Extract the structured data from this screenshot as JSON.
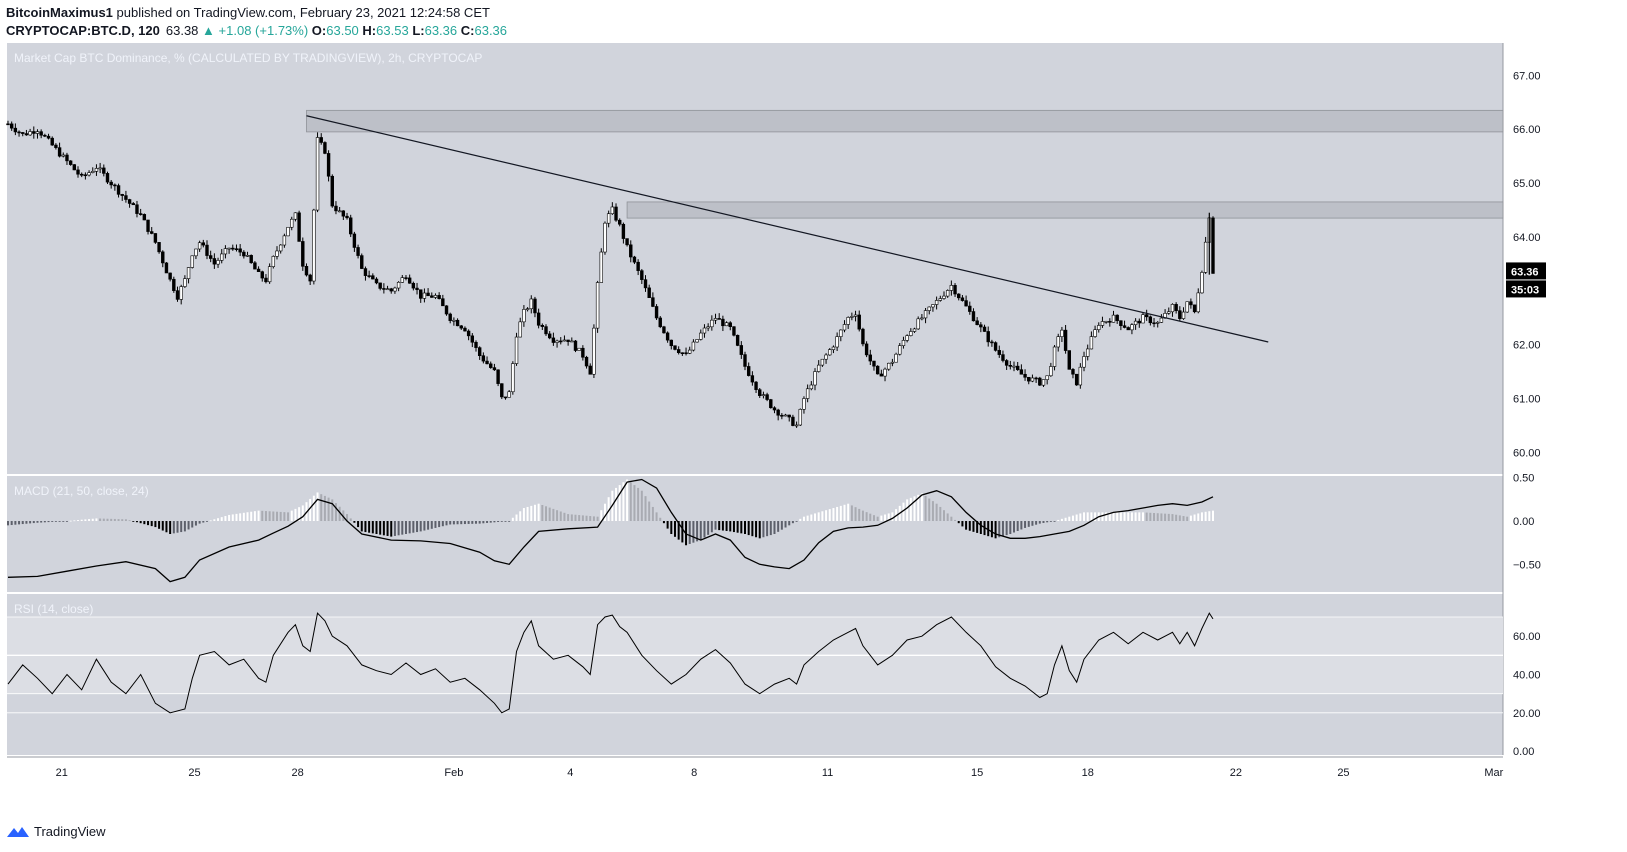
{
  "header": {
    "author": "BitcoinMaximus1",
    "published": "published on TradingView.com, February 23, 2021 12:24:58 CET",
    "symbol": "CRYPTOCAP:BTC.D, 120",
    "last": "63.38",
    "change": "+1.08 (+1.73%)",
    "o_label": "O:",
    "o_value": "63.50",
    "h_label": "H:",
    "h_value": "63.53",
    "l_label": "L:",
    "l_value": "63.36",
    "c_label": "C:",
    "c_value": "63.36"
  },
  "footer": {
    "brand": "TradingView"
  },
  "colors": {
    "pane_bg": "#d1d4dc",
    "candle": "#000000",
    "accent": "#26a69a",
    "zone": "#bdc0c8",
    "label_bg": "#000000"
  },
  "chart_data": [
    {
      "type": "candlestick",
      "title": "Market Cap BTC Dominance, % (CALCULATED BY TRADINGVIEW), 2h, CRYPTOCAP",
      "ylim": [
        59.6,
        67.6
      ],
      "y_ticks": [
        "67.00",
        "66.00",
        "65.00",
        "64.00",
        "62.00",
        "61.00",
        "60.00"
      ],
      "x_ticks": [
        "21",
        "25",
        "28",
        "Feb",
        "4",
        "8",
        "11",
        "15",
        "18",
        "22",
        "25",
        "Mar"
      ],
      "last_price_label": "63.36",
      "countdown_label": "35:03",
      "close_path": [
        [
          0,
          66.1
        ],
        [
          2,
          65.9
        ],
        [
          4,
          66.0
        ],
        [
          6,
          65.7
        ],
        [
          8,
          65.4
        ],
        [
          10,
          65.1
        ],
        [
          12,
          65.3
        ],
        [
          14,
          65.0
        ],
        [
          16,
          64.7
        ],
        [
          18,
          64.4
        ],
        [
          20,
          63.9
        ],
        [
          22,
          63.2
        ],
        [
          23,
          62.9
        ],
        [
          24,
          63.2
        ],
        [
          25,
          63.7
        ],
        [
          26,
          63.9
        ],
        [
          28,
          63.5
        ],
        [
          30,
          63.8
        ],
        [
          32,
          63.7
        ],
        [
          34,
          63.3
        ],
        [
          35,
          63.2
        ],
        [
          36,
          63.6
        ],
        [
          38,
          64.2
        ],
        [
          39,
          64.4
        ],
        [
          40,
          63.5
        ],
        [
          41,
          63.2
        ],
        [
          42,
          65.8
        ],
        [
          43,
          65.6
        ],
        [
          44,
          64.6
        ],
        [
          46,
          64.3
        ],
        [
          48,
          63.4
        ],
        [
          50,
          63.1
        ],
        [
          52,
          63.0
        ],
        [
          54,
          63.3
        ],
        [
          56,
          62.9
        ],
        [
          58,
          62.9
        ],
        [
          60,
          62.5
        ],
        [
          62,
          62.3
        ],
        [
          64,
          61.8
        ],
        [
          66,
          61.5
        ],
        [
          67,
          61.0
        ],
        [
          68,
          61.1
        ],
        [
          69,
          62.2
        ],
        [
          70,
          62.6
        ],
        [
          71,
          62.8
        ],
        [
          72,
          62.4
        ],
        [
          74,
          62.1
        ],
        [
          76,
          62.1
        ],
        [
          78,
          61.8
        ],
        [
          79,
          61.5
        ],
        [
          80,
          63.1
        ],
        [
          81,
          64.3
        ],
        [
          82,
          64.5
        ],
        [
          83,
          64.2
        ],
        [
          84,
          63.8
        ],
        [
          86,
          63.2
        ],
        [
          88,
          62.5
        ],
        [
          90,
          62.0
        ],
        [
          92,
          61.8
        ],
        [
          94,
          62.2
        ],
        [
          96,
          62.5
        ],
        [
          98,
          62.3
        ],
        [
          100,
          61.6
        ],
        [
          102,
          61.1
        ],
        [
          104,
          60.8
        ],
        [
          106,
          60.6
        ],
        [
          107,
          60.5
        ],
        [
          108,
          61.0
        ],
        [
          110,
          61.6
        ],
        [
          112,
          62.0
        ],
        [
          114,
          62.5
        ],
        [
          115,
          62.6
        ],
        [
          116,
          62.0
        ],
        [
          118,
          61.4
        ],
        [
          120,
          61.7
        ],
        [
          122,
          62.2
        ],
        [
          124,
          62.5
        ],
        [
          126,
          62.8
        ],
        [
          128,
          63.1
        ],
        [
          130,
          62.7
        ],
        [
          132,
          62.3
        ],
        [
          134,
          61.9
        ],
        [
          136,
          61.6
        ],
        [
          138,
          61.4
        ],
        [
          140,
          61.3
        ],
        [
          141,
          61.4
        ],
        [
          142,
          61.9
        ],
        [
          143,
          62.3
        ],
        [
          144,
          61.5
        ],
        [
          145,
          61.3
        ],
        [
          146,
          61.8
        ],
        [
          148,
          62.4
        ],
        [
          150,
          62.5
        ],
        [
          152,
          62.3
        ],
        [
          154,
          62.5
        ],
        [
          156,
          62.4
        ],
        [
          158,
          62.7
        ],
        [
          159,
          62.5
        ],
        [
          160,
          62.8
        ],
        [
          161,
          62.6
        ],
        [
          162,
          63.4
        ],
        [
          163,
          64.4
        ],
        [
          163.5,
          63.36
        ]
      ],
      "trendline": [
        [
          40.5,
          66.25
        ],
        [
          171,
          62.05
        ]
      ],
      "resistance_zones": [
        {
          "from_x": 40.5,
          "low": 65.95,
          "high": 66.35
        },
        {
          "from_x": 84,
          "low": 64.35,
          "high": 64.65
        }
      ]
    },
    {
      "type": "line",
      "title": "MACD (21, 50, close, 24)",
      "ylim": [
        -0.82,
        0.52
      ],
      "y_ticks": [
        "0.50",
        "0.00",
        "−0.50"
      ],
      "line": [
        [
          0,
          -0.65
        ],
        [
          4,
          -0.64
        ],
        [
          8,
          -0.58
        ],
        [
          12,
          -0.52
        ],
        [
          16,
          -0.47
        ],
        [
          20,
          -0.55
        ],
        [
          22,
          -0.7
        ],
        [
          24,
          -0.65
        ],
        [
          26,
          -0.45
        ],
        [
          30,
          -0.3
        ],
        [
          34,
          -0.22
        ],
        [
          36,
          -0.14
        ],
        [
          38,
          -0.06
        ],
        [
          40,
          0.05
        ],
        [
          42,
          0.25
        ],
        [
          44,
          0.2
        ],
        [
          46,
          0.0
        ],
        [
          48,
          -0.15
        ],
        [
          52,
          -0.22
        ],
        [
          56,
          -0.23
        ],
        [
          60,
          -0.26
        ],
        [
          64,
          -0.36
        ],
        [
          66,
          -0.46
        ],
        [
          68,
          -0.5
        ],
        [
          70,
          -0.3
        ],
        [
          72,
          -0.12
        ],
        [
          76,
          -0.09
        ],
        [
          80,
          -0.07
        ],
        [
          82,
          0.18
        ],
        [
          84,
          0.45
        ],
        [
          86,
          0.48
        ],
        [
          88,
          0.38
        ],
        [
          90,
          0.1
        ],
        [
          92,
          -0.15
        ],
        [
          94,
          -0.22
        ],
        [
          96,
          -0.15
        ],
        [
          98,
          -0.22
        ],
        [
          100,
          -0.42
        ],
        [
          102,
          -0.5
        ],
        [
          104,
          -0.53
        ],
        [
          106,
          -0.55
        ],
        [
          108,
          -0.45
        ],
        [
          110,
          -0.25
        ],
        [
          112,
          -0.12
        ],
        [
          114,
          -0.08
        ],
        [
          116,
          -0.07
        ],
        [
          118,
          -0.05
        ],
        [
          120,
          0.03
        ],
        [
          122,
          0.15
        ],
        [
          124,
          0.3
        ],
        [
          126,
          0.35
        ],
        [
          128,
          0.28
        ],
        [
          130,
          0.1
        ],
        [
          132,
          -0.05
        ],
        [
          134,
          -0.15
        ],
        [
          136,
          -0.2
        ],
        [
          138,
          -0.2
        ],
        [
          140,
          -0.18
        ],
        [
          142,
          -0.15
        ],
        [
          144,
          -0.12
        ],
        [
          146,
          -0.05
        ],
        [
          148,
          0.05
        ],
        [
          150,
          0.1
        ],
        [
          152,
          0.12
        ],
        [
          154,
          0.15
        ],
        [
          156,
          0.18
        ],
        [
          158,
          0.2
        ],
        [
          160,
          0.18
        ],
        [
          162,
          0.22
        ],
        [
          163.5,
          0.28
        ]
      ],
      "histogram": [
        [
          0,
          -0.05
        ],
        [
          4,
          -0.02
        ],
        [
          8,
          0.0
        ],
        [
          12,
          0.03
        ],
        [
          16,
          0.02
        ],
        [
          20,
          -0.07
        ],
        [
          22,
          -0.15
        ],
        [
          24,
          -0.12
        ],
        [
          26,
          -0.03
        ],
        [
          30,
          0.07
        ],
        [
          34,
          0.12
        ],
        [
          38,
          0.1
        ],
        [
          40,
          0.18
        ],
        [
          42,
          0.33
        ],
        [
          44,
          0.25
        ],
        [
          46,
          0.08
        ],
        [
          48,
          -0.12
        ],
        [
          52,
          -0.18
        ],
        [
          56,
          -0.12
        ],
        [
          60,
          -0.04
        ],
        [
          64,
          -0.03
        ],
        [
          68,
          0.0
        ],
        [
          70,
          0.15
        ],
        [
          72,
          0.2
        ],
        [
          76,
          0.08
        ],
        [
          80,
          0.05
        ],
        [
          82,
          0.35
        ],
        [
          84,
          0.48
        ],
        [
          86,
          0.35
        ],
        [
          88,
          0.1
        ],
        [
          90,
          -0.15
        ],
        [
          92,
          -0.28
        ],
        [
          94,
          -0.22
        ],
        [
          96,
          -0.1
        ],
        [
          98,
          -0.12
        ],
        [
          100,
          -0.15
        ],
        [
          102,
          -0.2
        ],
        [
          104,
          -0.15
        ],
        [
          106,
          -0.05
        ],
        [
          108,
          0.05
        ],
        [
          110,
          0.1
        ],
        [
          112,
          0.15
        ],
        [
          114,
          0.2
        ],
        [
          116,
          0.12
        ],
        [
          118,
          0.05
        ],
        [
          120,
          0.1
        ],
        [
          122,
          0.25
        ],
        [
          124,
          0.32
        ],
        [
          126,
          0.2
        ],
        [
          128,
          0.05
        ],
        [
          130,
          -0.1
        ],
        [
          132,
          -0.15
        ],
        [
          134,
          -0.2
        ],
        [
          136,
          -0.15
        ],
        [
          138,
          -0.08
        ],
        [
          140,
          -0.03
        ],
        [
          142,
          0.0
        ],
        [
          144,
          0.05
        ],
        [
          146,
          0.1
        ],
        [
          150,
          0.1
        ],
        [
          154,
          0.1
        ],
        [
          158,
          0.08
        ],
        [
          160,
          0.05
        ],
        [
          162,
          0.1
        ],
        [
          163.5,
          0.12
        ]
      ]
    },
    {
      "type": "line",
      "title": "RSI (14, close)",
      "ylim": [
        -2,
        82
      ],
      "bands": [
        30,
        70
      ],
      "midline": 50,
      "y_ticks": [
        "60.00",
        "40.00",
        "20.00",
        "0.00"
      ],
      "line": [
        [
          0,
          35
        ],
        [
          2,
          45
        ],
        [
          4,
          38
        ],
        [
          6,
          30
        ],
        [
          8,
          40
        ],
        [
          10,
          32
        ],
        [
          12,
          48
        ],
        [
          14,
          36
        ],
        [
          16,
          30
        ],
        [
          18,
          40
        ],
        [
          20,
          25
        ],
        [
          22,
          20
        ],
        [
          24,
          22
        ],
        [
          25,
          38
        ],
        [
          26,
          50
        ],
        [
          28,
          52
        ],
        [
          30,
          45
        ],
        [
          32,
          48
        ],
        [
          34,
          38
        ],
        [
          35,
          36
        ],
        [
          36,
          50
        ],
        [
          38,
          62
        ],
        [
          39,
          66
        ],
        [
          40,
          55
        ],
        [
          41,
          52
        ],
        [
          42,
          72
        ],
        [
          43,
          68
        ],
        [
          44,
          60
        ],
        [
          46,
          55
        ],
        [
          48,
          45
        ],
        [
          50,
          42
        ],
        [
          52,
          40
        ],
        [
          54,
          46
        ],
        [
          56,
          40
        ],
        [
          58,
          43
        ],
        [
          60,
          36
        ],
        [
          62,
          38
        ],
        [
          64,
          32
        ],
        [
          66,
          25
        ],
        [
          67,
          20
        ],
        [
          68,
          22
        ],
        [
          69,
          52
        ],
        [
          70,
          62
        ],
        [
          71,
          68
        ],
        [
          72,
          55
        ],
        [
          74,
          48
        ],
        [
          76,
          50
        ],
        [
          78,
          44
        ],
        [
          79,
          40
        ],
        [
          80,
          66
        ],
        [
          81,
          70
        ],
        [
          82,
          71
        ],
        [
          83,
          65
        ],
        [
          84,
          62
        ],
        [
          86,
          50
        ],
        [
          88,
          42
        ],
        [
          90,
          35
        ],
        [
          92,
          40
        ],
        [
          94,
          48
        ],
        [
          96,
          53
        ],
        [
          98,
          46
        ],
        [
          100,
          35
        ],
        [
          102,
          30
        ],
        [
          104,
          35
        ],
        [
          106,
          38
        ],
        [
          107,
          35
        ],
        [
          108,
          45
        ],
        [
          110,
          52
        ],
        [
          112,
          58
        ],
        [
          114,
          62
        ],
        [
          115,
          64
        ],
        [
          116,
          55
        ],
        [
          118,
          45
        ],
        [
          120,
          50
        ],
        [
          122,
          58
        ],
        [
          124,
          60
        ],
        [
          126,
          66
        ],
        [
          128,
          70
        ],
        [
          130,
          62
        ],
        [
          132,
          55
        ],
        [
          134,
          44
        ],
        [
          136,
          38
        ],
        [
          138,
          34
        ],
        [
          140,
          28
        ],
        [
          141,
          30
        ],
        [
          142,
          45
        ],
        [
          143,
          55
        ],
        [
          144,
          42
        ],
        [
          145,
          36
        ],
        [
          146,
          48
        ],
        [
          148,
          58
        ],
        [
          150,
          62
        ],
        [
          152,
          56
        ],
        [
          154,
          62
        ],
        [
          156,
          58
        ],
        [
          158,
          62
        ],
        [
          159,
          56
        ],
        [
          160,
          62
        ],
        [
          161,
          55
        ],
        [
          162,
          64
        ],
        [
          163,
          72
        ],
        [
          163.5,
          69
        ]
      ]
    }
  ]
}
